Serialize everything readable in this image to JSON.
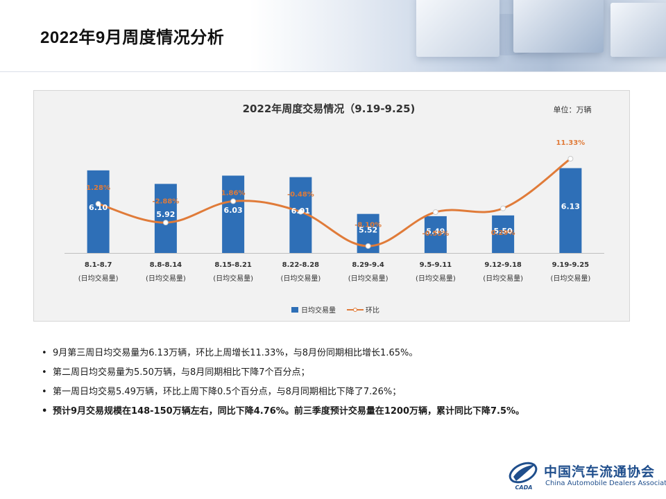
{
  "page": {
    "title": "2022年9月周度情况分析"
  },
  "colors": {
    "bar": "#2e6fb7",
    "line": "#e07b39",
    "panel_bg": "#f2f2f2",
    "logo_blue": "#1f4e8c"
  },
  "chart_data": {
    "type": "bar",
    "title": "2022年周度交易情况（9.19-9.25)",
    "unit": "单位：万辆",
    "categories": [
      "8.1-8.7",
      "8.8-8.14",
      "8.15-8.21",
      "8.22-8.28",
      "8.29-9.4",
      "9.5-9.11",
      "9.12-9.18",
      "9.19-9.25"
    ],
    "category_sublabel": "(日均交易量)",
    "series": [
      {
        "name": "日均交易量",
        "type": "bar",
        "values": [
          6.1,
          5.92,
          6.03,
          6.01,
          5.52,
          5.49,
          5.5,
          6.13
        ],
        "labels": [
          "6.10",
          "5.92",
          "6.03",
          "6.01",
          "5.52",
          "5.49",
          "5.50",
          "6.13"
        ]
      },
      {
        "name": "环比",
        "type": "line",
        "values": [
          1.28,
          -2.88,
          1.86,
          -0.48,
          -8.1,
          -0.55,
          0.29,
          11.33
        ],
        "labels": [
          "1.28%",
          "-2.88%",
          "1.86%",
          "-0.48%",
          "-8.10%",
          "-0.55%",
          "0.29%",
          "11.33%"
        ]
      }
    ],
    "legend": "bottom-center",
    "grid": false
  },
  "bullets": [
    {
      "text": "9月第三周日均交易量为6.13万辆，环比上周增长11.33%，与8月份同期相比增长1.65%。",
      "bold": false
    },
    {
      "text": "第二周日均交易量为5.50万辆，与8月同期相比下降7个百分点；",
      "bold": false
    },
    {
      "text": "第一周日均交易5.49万辆，环比上周下降0.5个百分点，与8月同期相比下降了7.26%；",
      "bold": false
    },
    {
      "text": "预计9月交易规模在148-150万辆左右，同比下降4.76%。前三季度预计交易量在1200万辆，累计同比下降7.5%。",
      "bold": true
    }
  ],
  "logo": {
    "cn": "中国汽车流通协会",
    "en": "China Automobile Dealers Association",
    "mark_text": "CADA"
  }
}
